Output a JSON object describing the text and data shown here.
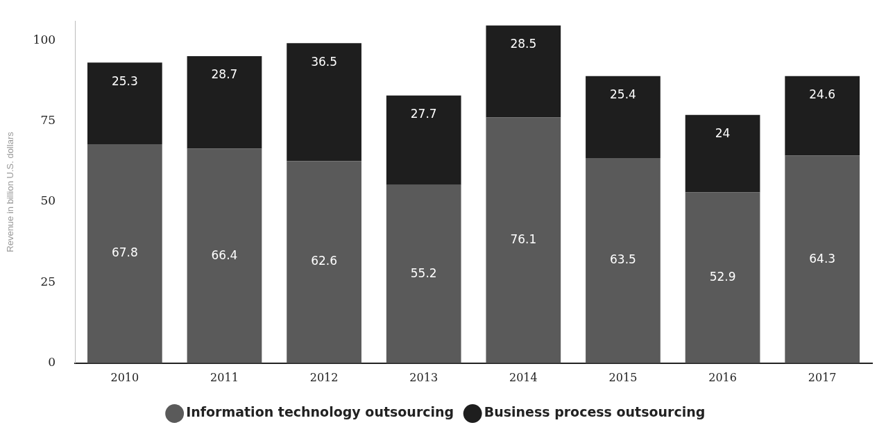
{
  "chart_data": {
    "type": "bar",
    "stacked": true,
    "ylabel": "Revenue in billion U.S. dollars",
    "categories": [
      "2010",
      "2011",
      "2012",
      "2013",
      "2014",
      "2015",
      "2016",
      "2017"
    ],
    "series": [
      {
        "name": "Information technology outsourcing",
        "color": "#5a5a5a",
        "values": [
          67.8,
          66.4,
          62.6,
          55.2,
          76.1,
          63.5,
          52.9,
          64.3
        ]
      },
      {
        "name": "Business process outsourcing",
        "color": "#1e1e1e",
        "values": [
          25.3,
          28.7,
          36.5,
          27.7,
          28.5,
          25.4,
          24,
          24.6
        ]
      }
    ],
    "ylim": [
      0,
      106
    ],
    "yticks": [
      0,
      25,
      50,
      75,
      100
    ],
    "grid": false,
    "legend": "bottom",
    "data_labels": true,
    "marker": "circle"
  }
}
